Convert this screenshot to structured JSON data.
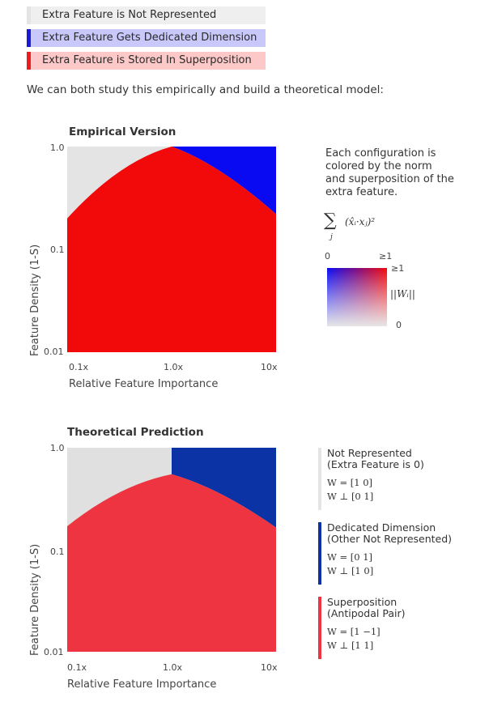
{
  "legend": [
    {
      "label": "Extra Feature is Not Represented",
      "bg": "#efefef",
      "border": "#e4e4e4"
    },
    {
      "label": "Extra Feature Gets Dedicated Dimension",
      "bg": "#c8c8fb",
      "border": "#1a1ad6"
    },
    {
      "label": "Extra Feature is Stored In Superposition",
      "bg": "#fcc8c8",
      "border": "#ee1c1c"
    }
  ],
  "intro_text": "We can both study this empirically and build a theoretical model:",
  "colors": {
    "gray": "#e4e4e4",
    "blue_empirical": "#0a0af2",
    "red_empirical": "#f20a0a",
    "blue_theory": "#0b33a6",
    "red_theory": "#ee3440",
    "gray_theory": "#e0e0e0"
  },
  "empirical": {
    "title": "Empirical Version",
    "xlabel": "Relative Feature Importance",
    "ylabel": "Feature Density (1-S)",
    "x_ticks": [
      "0.1x",
      "1.0x",
      "10x"
    ],
    "y_ticks": [
      "1.0",
      "0.1",
      "0.01"
    ],
    "description": "Each configuration is colored by the norm and superposition of the extra feature.",
    "formula_sum": "∑",
    "formula_index": "j",
    "formula_body": "(x̂ᵢ·xⱼ)²",
    "colorbar_x_min": "0",
    "colorbar_x_max": "≥1",
    "colorbar_y_max": "≥1",
    "colorbar_y_min": "0",
    "colorbar_y_label": "||Wᵢ||"
  },
  "theoretical": {
    "title": "Theoretical Prediction",
    "xlabel": "Relative Feature Importance",
    "ylabel": "Feature Density (1-S)",
    "x_ticks": [
      "0.1x",
      "1.0x",
      "10x"
    ],
    "y_ticks": [
      "1.0",
      "0.1",
      "0.01"
    ],
    "items": [
      {
        "title1": "Not Represented",
        "title2": "(Extra Feature is 0)",
        "row1": "W = [1   0]",
        "row2": "W ⊥ [0   1]",
        "color": "#e4e4e4"
      },
      {
        "title1": "Dedicated Dimension",
        "title2": "(Other Not Represented)",
        "row1": "W = [0   1]",
        "row2": "W ⊥ [1   0]",
        "color": "#0b33a6"
      },
      {
        "title1": "Superposition",
        "title2": "(Antipodal Pair)",
        "row1": "W = [1   −1]",
        "row2": "W ⊥ [1   1]",
        "color": "#ee3440"
      }
    ]
  },
  "chart_data": [
    {
      "type": "heatmap",
      "title": "Empirical Version",
      "xlabel": "Relative Feature Importance",
      "ylabel": "Feature Density (1-S)",
      "x_scale": "log",
      "y_scale": "log",
      "xlim": [
        0.1,
        10
      ],
      "ylim": [
        0.01,
        1.0
      ],
      "x_ticks": [
        "0.1x",
        "1.0x",
        "10x"
      ],
      "y_ticks": [
        "1.0",
        "0.1",
        "0.01"
      ],
      "regions": [
        {
          "name": "Extra Feature is Not Represented",
          "color": "#e4e4e4"
        },
        {
          "name": "Extra Feature Gets Dedicated Dimension",
          "color": "#0a0af2"
        },
        {
          "name": "Extra Feature is Stored In Superposition",
          "color": "#f20a0a"
        }
      ],
      "boundary_peak": {
        "x": 1.0,
        "y": 1.0
      },
      "boundary_edges": {
        "x_left": 0.1,
        "y_left": 0.2,
        "x_right": 10,
        "y_right": 0.22
      }
    },
    {
      "type": "heatmap",
      "title": "Theoretical Prediction",
      "xlabel": "Relative Feature Importance",
      "ylabel": "Feature Density (1-S)",
      "x_scale": "log",
      "y_scale": "log",
      "xlim": [
        0.1,
        10
      ],
      "ylim": [
        0.01,
        1.0
      ],
      "x_ticks": [
        "0.1x",
        "1.0x",
        "10x"
      ],
      "y_ticks": [
        "1.0",
        "0.1",
        "0.01"
      ],
      "regions": [
        {
          "name": "Not Represented",
          "color": "#e0e0e0"
        },
        {
          "name": "Dedicated Dimension",
          "color": "#0b33a6"
        },
        {
          "name": "Superposition",
          "color": "#ee3440"
        }
      ],
      "boundary_peak": {
        "x": 1.0,
        "y": 0.55
      },
      "boundary_edges": {
        "x_left": 0.1,
        "y_left": 0.17,
        "x_right": 10,
        "y_right": 0.165
      }
    }
  ]
}
